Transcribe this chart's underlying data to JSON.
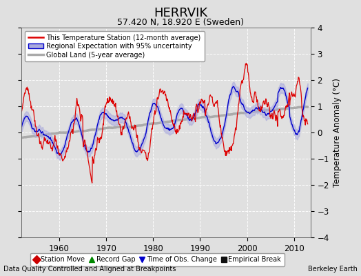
{
  "title": "HERRVIK",
  "subtitle": "57.420 N, 18.920 E (Sweden)",
  "ylabel": "Temperature Anomaly (°C)",
  "xlabel_left": "Data Quality Controlled and Aligned at Breakpoints",
  "xlabel_right": "Berkeley Earth",
  "ylim": [
    -4,
    4
  ],
  "xlim": [
    1952,
    2013.5
  ],
  "yticks": [
    -4,
    -3,
    -2,
    -1,
    0,
    1,
    2,
    3,
    4
  ],
  "xticks": [
    1960,
    1970,
    1980,
    1990,
    2000,
    2010
  ],
  "bg_color": "#e0e0e0",
  "plot_bg_color": "#e0e0e0",
  "grid_color": "#ffffff",
  "station_color": "#dd0000",
  "regional_color": "#0000cc",
  "regional_fill_color": "#aaaadd",
  "global_color": "#aaaaaa",
  "legend_items": [
    {
      "label": "This Temperature Station (12-month average)",
      "color": "#dd0000",
      "lw": 1.5
    },
    {
      "label": "Regional Expectation with 95% uncertainty",
      "color": "#0000cc",
      "lw": 1.5
    },
    {
      "label": "Global Land (5-year average)",
      "color": "#aaaaaa",
      "lw": 2.5
    }
  ],
  "marker_legend": [
    {
      "marker": "D",
      "color": "#cc0000",
      "label": "Station Move"
    },
    {
      "marker": "^",
      "color": "#008800",
      "label": "Record Gap"
    },
    {
      "marker": "v",
      "color": "#0000cc",
      "label": "Time of Obs. Change"
    },
    {
      "marker": "s",
      "color": "#111111",
      "label": "Empirical Break"
    }
  ]
}
